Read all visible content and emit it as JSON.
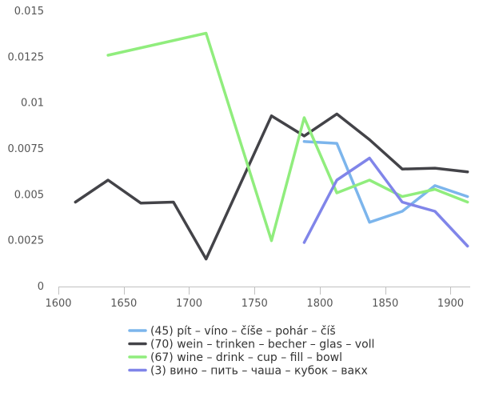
{
  "chart_data": {
    "type": "line",
    "title": "",
    "xlabel": "",
    "ylabel": "",
    "xlim": [
      1600,
      1915
    ],
    "ylim": [
      0,
      0.015
    ],
    "x_ticks": [
      1600,
      1650,
      1700,
      1750,
      1800,
      1850,
      1900
    ],
    "x_tick_labels": [
      "1600",
      "1650",
      "1700",
      "1750",
      "1800",
      "1850",
      "1900"
    ],
    "y_ticks": [
      0,
      0.0025,
      0.005,
      0.0075,
      0.01,
      0.0125,
      0.015
    ],
    "y_tick_labels": [
      "0",
      "0.0025",
      "0.005",
      "0.0075",
      "0.01",
      "0.0125",
      "0.015"
    ],
    "grid": false,
    "legend_position": "bottom",
    "series": [
      {
        "name": "(45) pít – víno – číše – pohár – číš",
        "color": "#7cb5ec",
        "points": [
          [
            1788,
            0.0079
          ],
          [
            1813,
            0.0078
          ],
          [
            1838,
            0.0035
          ],
          [
            1863,
            0.0041
          ],
          [
            1888,
            0.0055
          ],
          [
            1913,
            0.0049
          ]
        ]
      },
      {
        "name": "(70) wein – trinken – becher – glas – voll",
        "color": "#434348",
        "points": [
          [
            1613,
            0.0046
          ],
          [
            1638,
            0.0058
          ],
          [
            1663,
            0.00455
          ],
          [
            1688,
            0.0046
          ],
          [
            1713,
            0.0015
          ],
          [
            1763,
            0.0093
          ],
          [
            1788,
            0.0082
          ],
          [
            1813,
            0.0094
          ],
          [
            1838,
            0.008
          ],
          [
            1863,
            0.0064
          ],
          [
            1888,
            0.00645
          ],
          [
            1913,
            0.00625
          ]
        ]
      },
      {
        "name": "(67) wine – drink – cup – fill – bowl",
        "color": "#90ed7d",
        "points": [
          [
            1638,
            0.0126
          ],
          [
            1713,
            0.0138
          ],
          [
            1763,
            0.0025
          ],
          [
            1788,
            0.0092
          ],
          [
            1813,
            0.0051
          ],
          [
            1838,
            0.0058
          ],
          [
            1863,
            0.0049
          ],
          [
            1888,
            0.0053
          ],
          [
            1913,
            0.0046
          ]
        ]
      },
      {
        "name": "(3) вино – пить – чаша – кубок – вакх",
        "color": "#8085e9",
        "points": [
          [
            1788,
            0.0024
          ],
          [
            1813,
            0.0058
          ],
          [
            1838,
            0.007
          ],
          [
            1863,
            0.0046
          ],
          [
            1888,
            0.0041
          ],
          [
            1913,
            0.0022
          ]
        ]
      }
    ]
  }
}
